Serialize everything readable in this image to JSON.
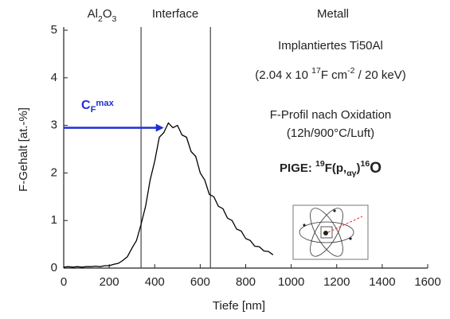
{
  "chart_data": {
    "type": "line",
    "x_label": "Tiefe [nm]",
    "y_label": "F-Gehalt [at.-%]",
    "x": [
      0,
      20,
      40,
      60,
      80,
      100,
      120,
      140,
      160,
      180,
      200,
      220,
      240,
      260,
      280,
      300,
      320,
      340,
      360,
      380,
      400,
      420,
      440,
      460,
      480,
      500,
      520,
      540,
      560,
      580,
      600,
      620,
      640,
      660,
      680,
      700,
      720,
      740,
      760,
      780,
      800,
      820,
      840,
      860,
      880,
      900,
      920
    ],
    "values": [
      0.02,
      0.03,
      0.02,
      0.03,
      0.02,
      0.03,
      0.03,
      0.04,
      0.03,
      0.05,
      0.05,
      0.08,
      0.1,
      0.16,
      0.24,
      0.42,
      0.58,
      0.92,
      1.3,
      1.85,
      2.25,
      2.75,
      2.85,
      3.05,
      2.95,
      3.0,
      2.8,
      2.75,
      2.45,
      2.35,
      2.0,
      1.85,
      1.55,
      1.5,
      1.3,
      1.25,
      1.05,
      1.0,
      0.82,
      0.78,
      0.62,
      0.58,
      0.46,
      0.45,
      0.36,
      0.35,
      0.28
    ],
    "color": "#000000",
    "xlim": [
      0,
      1600
    ],
    "ylim": [
      0,
      5
    ],
    "xticks": [
      0,
      200,
      400,
      600,
      800,
      1000,
      1200,
      1400,
      1600
    ],
    "yticks": [
      0,
      1,
      2,
      3,
      4,
      5
    ],
    "boundaries": [
      340,
      645
    ],
    "region_labels": [
      [
        "Al",
        "2",
        "O",
        "3"
      ],
      [
        "Interface"
      ],
      [
        "Metall"
      ]
    ],
    "annotations": [
      [
        "Implantiertes Ti50Al"
      ],
      [
        "(2.04 x 10 ",
        "17",
        "F cm",
        "-2",
        " / 20 keV)"
      ],
      [
        "F-Profil nach Oxidation"
      ],
      [
        "(12h/900°C/Luft)"
      ],
      [
        "PIGE: ",
        "19",
        "F(p,",
        "αγ",
        ")",
        "16",
        "O"
      ]
    ],
    "cmax_label": [
      "C",
      "F",
      "max"
    ],
    "cmax_arrow": {
      "x": [
        0,
        440
      ],
      "y": 2.95,
      "color": "#1f2fd6"
    }
  }
}
